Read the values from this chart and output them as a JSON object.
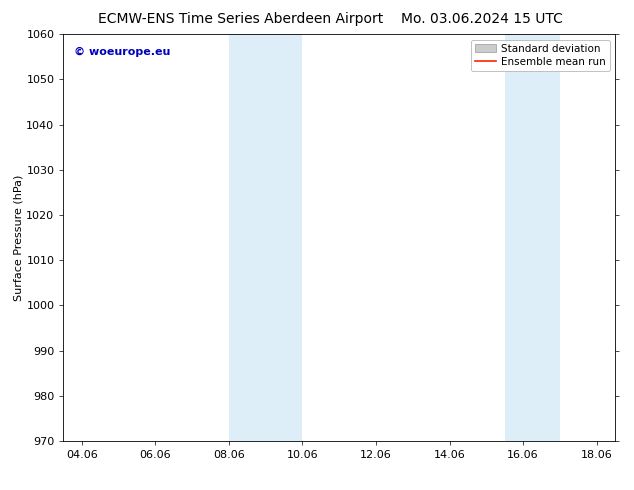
{
  "title_left": "ECMW-ENS Time Series Aberdeen Airport",
  "title_right": "Mo. 03.06.2024 15 UTC",
  "ylabel": "Surface Pressure (hPa)",
  "ylim": [
    970,
    1060
  ],
  "yticks": [
    970,
    980,
    990,
    1000,
    1010,
    1020,
    1030,
    1040,
    1050,
    1060
  ],
  "xlim_start": 3.5,
  "xlim_end": 18.5,
  "xtick_labels": [
    "04.06",
    "06.06",
    "08.06",
    "10.06",
    "12.06",
    "14.06",
    "16.06",
    "18.06"
  ],
  "xtick_positions": [
    4,
    6,
    8,
    10,
    12,
    14,
    16,
    18
  ],
  "shaded_bands": [
    {
      "x_start": 8,
      "x_end": 10
    },
    {
      "x_start": 15.5,
      "x_end": 17.0
    }
  ],
  "shaded_color": "#deeef8",
  "watermark_text": "© woeurope.eu",
  "watermark_color": "#0000bb",
  "legend_std_color": "#cccccc",
  "legend_mean_color": "#ff2200",
  "bg_color": "#ffffff",
  "title_fontsize": 10,
  "ylabel_fontsize": 8,
  "tick_fontsize": 8,
  "watermark_fontsize": 8,
  "legend_fontsize": 7.5
}
